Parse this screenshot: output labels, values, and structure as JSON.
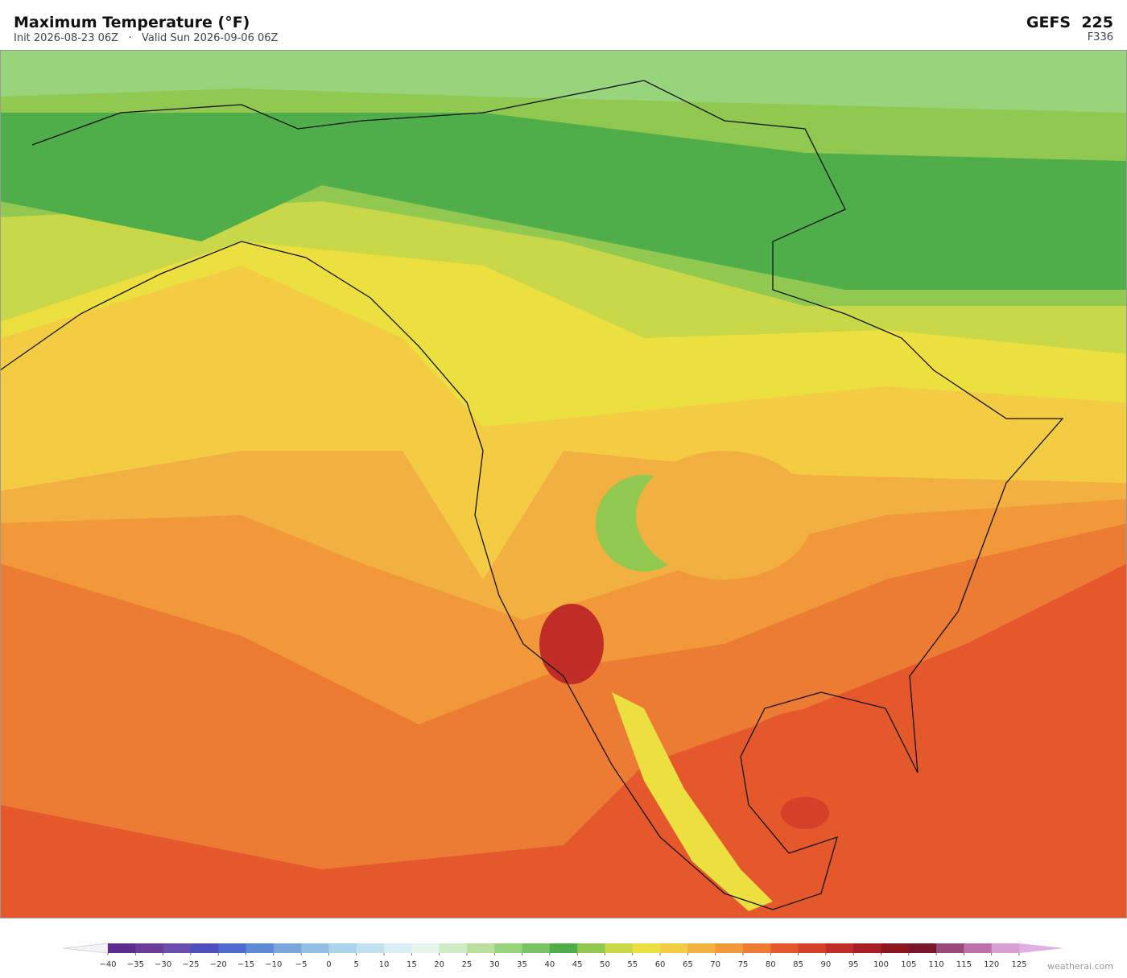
{
  "header": {
    "title": "Maximum Temperature  (°F)",
    "subtitle": "Init 2026-08-23 06Z   ·   Valid Sun 2026-09-06 06Z",
    "model": "GEFS  225",
    "forecast_hour": "F336"
  },
  "colorbar": {
    "labels": [
      "−40",
      "−35",
      "−30",
      "−25",
      "−20",
      "−15",
      "−10",
      "−5",
      "0",
      "5",
      "10",
      "15",
      "20",
      "25",
      "30",
      "35",
      "40",
      "45",
      "50",
      "55",
      "60",
      "65",
      "70",
      "75",
      "80",
      "85",
      "90",
      "95",
      "100",
      "105",
      "110",
      "115",
      "120",
      "125"
    ],
    "colors": [
      "#5b2d8e",
      "#6a3d9a",
      "#6b4fb0",
      "#4f4fc0",
      "#4f6bd0",
      "#5e8ad6",
      "#7aa6dc",
      "#93bfe4",
      "#aad4ec",
      "#c2e2f0",
      "#d8eef2",
      "#e6f4ea",
      "#d0ecc4",
      "#b8e09c",
      "#98d47c",
      "#78c464",
      "#4fae4a",
      "#90c850",
      "#c8d848",
      "#ece040",
      "#f4cc44",
      "#f2b040",
      "#f0983a",
      "#ec7c34",
      "#e4582c",
      "#d44028",
      "#c02c26",
      "#a81e24",
      "#8c1620",
      "#78162a",
      "#9a4a7a",
      "#c070a8",
      "#d8a0d0"
    ]
  },
  "footer": {
    "watermark": "weatherai.com"
  }
}
